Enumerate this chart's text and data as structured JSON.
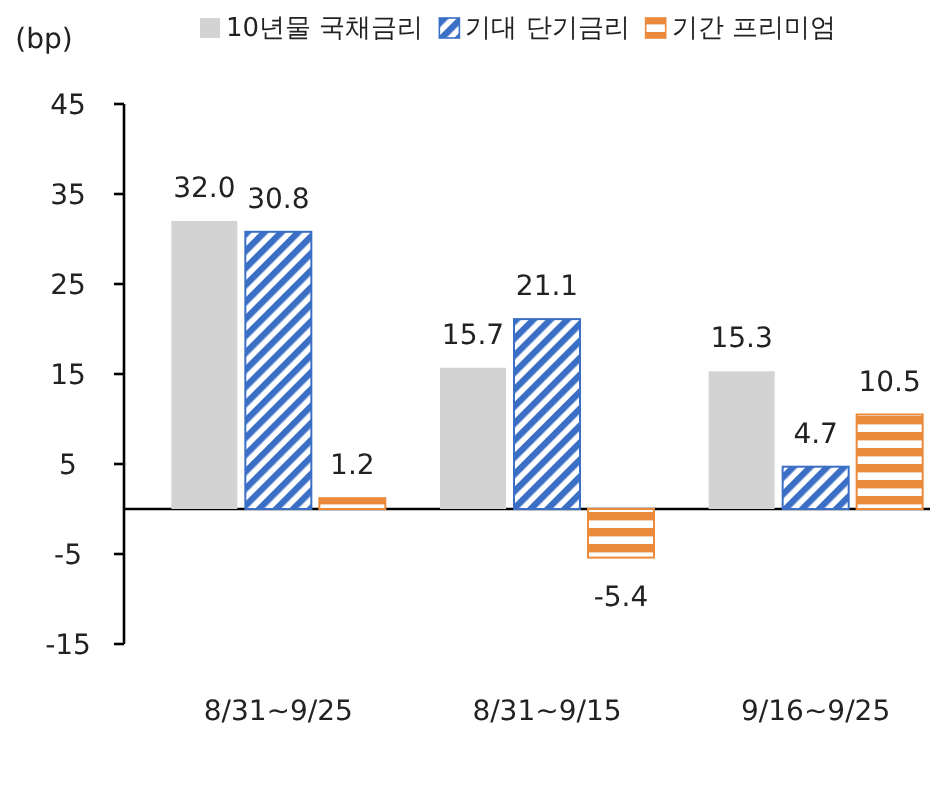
{
  "chart_data": {
    "type": "bar",
    "ylabel": "(bp)",
    "categories": [
      "8/31~9/25",
      "8/31~9/15",
      "9/16~9/25"
    ],
    "series": [
      {
        "name": "10년물 국채금리",
        "color": "#d3d3d3",
        "values": [
          32.0,
          15.7,
          15.3
        ],
        "value_labels": [
          "32.0",
          "15.7",
          "15.3"
        ]
      },
      {
        "name": "기대 단기금리",
        "color": "#3b6fc6",
        "values": [
          30.8,
          21.1,
          4.7
        ],
        "value_labels": [
          "30.8",
          "21.1",
          "4.7"
        ]
      },
      {
        "name": "기간 프리미엄",
        "color": "#ec8a3c",
        "values": [
          1.2,
          -5.4,
          10.5
        ],
        "value_labels": [
          "1.2",
          "-5.4",
          "10.5"
        ]
      }
    ],
    "ylim": [
      -15,
      45
    ],
    "yticks": [
      -15,
      -5,
      5,
      15,
      25,
      35,
      45
    ],
    "legend": "top"
  }
}
